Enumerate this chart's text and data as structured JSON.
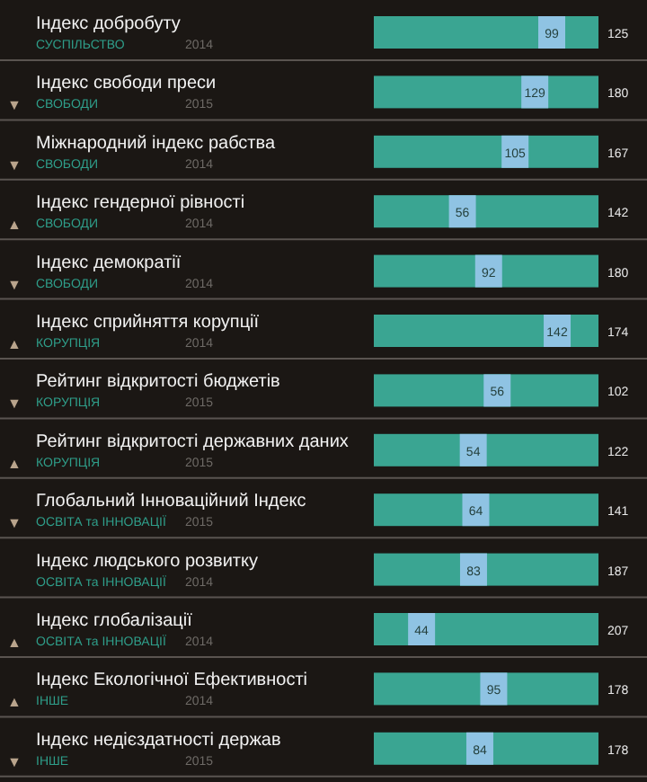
{
  "chart_data": {
    "type": "other",
    "data_labels": true,
    "categories": [
      "Індекс добробуту",
      "Індекс свободи преси",
      "Міжнародний індекс рабства",
      "Індекс гендерної рівності",
      "Індекс демократії",
      "Індекс сприйняття корупції",
      "Рейтинг відкритості бюджетів",
      "Рейтинг відкритості державних даних",
      "Глобальний Інноваційний Індекс",
      "Індекс людського розвитку",
      "Індекс глобалізації",
      "Індекс Екологічної Ефективності",
      "Індекс недієздатності держав"
    ],
    "values": [
      99,
      129,
      105,
      56,
      92,
      142,
      56,
      54,
      64,
      83,
      44,
      95,
      84
    ],
    "totals": [
      "125",
      "180",
      "167",
      "142",
      "180",
      "174",
      "102",
      "122",
      "141",
      "187",
      "207",
      "178",
      "178"
    ],
    "colors": [
      "#8fc3e3",
      "#8fc3e3",
      "#8fc3e3",
      "#8fc3e3",
      "#8fc3e3",
      "#8fc3e3",
      "#8fc3e3",
      "#8fc3e3",
      "#8fc3e3",
      "#8fc3e3",
      "#8fc3e3",
      "#8fc3e3",
      "#8fc3e3"
    ],
    "annotations": [
      {
        "text": "СУСПІЛЬСТВО",
        "y": "Індекс добробуту"
      },
      {
        "text": "2014",
        "y": "Індекс добробуту"
      },
      {
        "text": "СВОБОДИ",
        "y": "Індекс свободи преси"
      },
      {
        "text": "2015",
        "y": "Індекс свободи преси"
      },
      {
        "text": "▼",
        "y": "Індекс свободи преси"
      },
      {
        "text": "СВОБОДИ",
        "y": "Міжнародний індекс рабства"
      },
      {
        "text": "2014",
        "y": "Міжнародний індекс рабства"
      },
      {
        "text": "▼",
        "y": "Міжнародний індекс рабства"
      },
      {
        "text": "СВОБОДИ",
        "y": "Індекс гендерної рівності"
      },
      {
        "text": "2014",
        "y": "Індекс гендерної рівності"
      },
      {
        "text": "▲",
        "y": "Індекс гендерної рівності"
      },
      {
        "text": "СВОБОДИ",
        "y": "Індекс демократії"
      },
      {
        "text": "2014",
        "y": "Індекс демократії"
      },
      {
        "text": "▼",
        "y": "Індекс демократії"
      },
      {
        "text": "КОРУПЦІЯ",
        "y": "Індекс сприйняття корупції"
      },
      {
        "text": "2014",
        "y": "Індекс сприйняття корупції"
      },
      {
        "text": "▲",
        "y": "Індекс сприйняття корупції"
      },
      {
        "text": "КОРУПЦІЯ",
        "y": "Рейтинг відкритості бюджетів"
      },
      {
        "text": "2015",
        "y": "Рейтинг відкритості бюджетів"
      },
      {
        "text": "▼",
        "y": "Рейтинг відкритості бюджетів"
      },
      {
        "text": "КОРУПЦІЯ",
        "y": "Рейтинг відкритості державних даних"
      },
      {
        "text": "2015",
        "y": "Рейтинг відкритості державних даних"
      },
      {
        "text": "▲",
        "y": "Рейтинг відкритості державних даних"
      },
      {
        "text": "ОСВІТА та ІННОВАЦІЇ",
        "y": "Глобальний Інноваційний Індекс"
      },
      {
        "text": "2015",
        "y": "Глобальний Інноваційний Індекс"
      },
      {
        "text": "▼",
        "y": "Глобальний Інноваційний Індекс"
      },
      {
        "text": "ОСВІТА та ІННОВАЦІЇ",
        "y": "Індекс людського розвитку"
      },
      {
        "text": "2014",
        "y": "Індекс людського розвитку"
      },
      {
        "text": "ОСВІТА та ІННОВАЦІЇ",
        "y": "Індекс глобалізації"
      },
      {
        "text": "2014",
        "y": "Індекс глобалізації"
      },
      {
        "text": "▲",
        "y": "Індекс глобалізації"
      },
      {
        "text": "ІНШЕ",
        "y": "Індекс Екологічної Ефективності"
      },
      {
        "text": "2014",
        "y": "Індекс Екологічної Ефективності"
      },
      {
        "text": "▲",
        "y": "Індекс Екологічної Ефективності"
      },
      {
        "text": "ІНШЕ",
        "y": "Індекс недієздатності держав"
      },
      {
        "text": "2015",
        "y": "Індекс недієздатності держав"
      },
      {
        "text": "▼",
        "y": "Індекс недієздатності держав"
      }
    ]
  }
}
